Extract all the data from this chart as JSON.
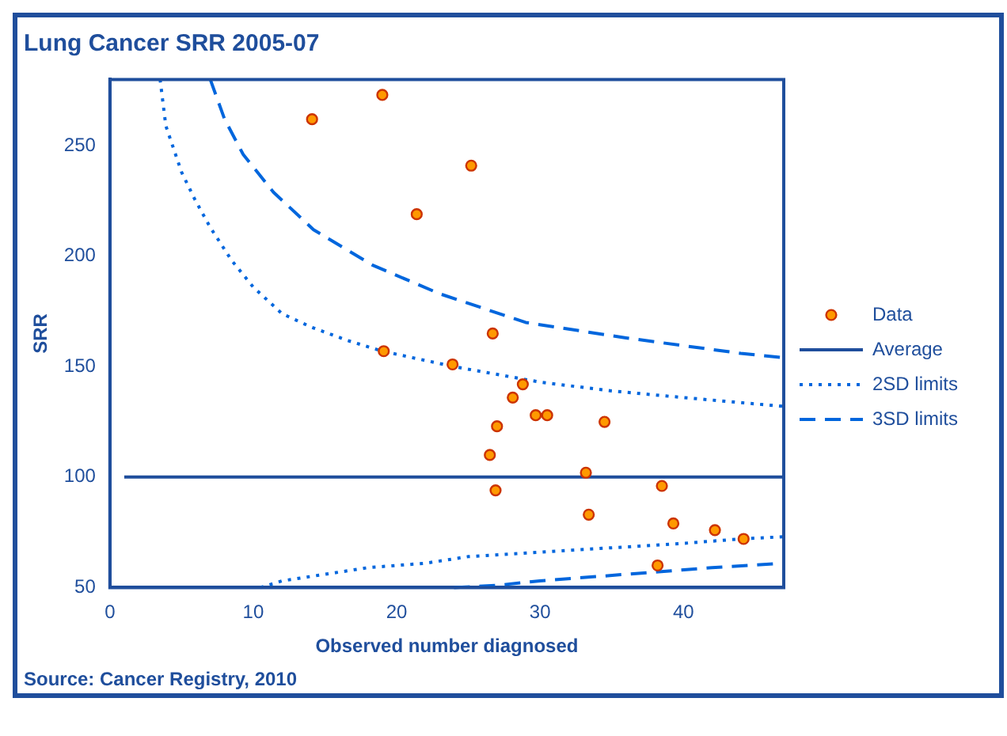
{
  "chart_data": {
    "type": "scatter",
    "title": "Lung Cancer SRR 2005-07",
    "xlabel": "Observed number diagnosed",
    "ylabel": "SRR",
    "annotations": [
      "Source: Cancer Registry, 2010"
    ],
    "xlim": [
      0,
      47
    ],
    "xticks": [
      0,
      10,
      20,
      30,
      40
    ],
    "ylim": [
      50,
      280
    ],
    "yticks": [
      50,
      100,
      150,
      200,
      250
    ],
    "grid": false,
    "legend": "right",
    "marker": "circle",
    "series": [
      {
        "name": "Data",
        "color": "#ff9900",
        "x": [
          14.1,
          19.0,
          21.4,
          25.2,
          19.1,
          23.9,
          26.7,
          28.8,
          28.1,
          27.0,
          29.7,
          30.5,
          34.5,
          26.5,
          26.9,
          33.2,
          33.4,
          38.5,
          39.3,
          42.2,
          44.2,
          38.2
        ],
        "values": [
          262,
          273,
          219,
          241,
          157,
          151,
          165,
          142,
          136,
          123,
          128,
          128,
          125,
          110,
          94,
          102,
          83,
          96,
          79,
          76,
          72,
          60
        ]
      },
      {
        "name": "Average",
        "type": "line",
        "color": "#1f4e9c",
        "line_style": "solid",
        "marker": "none",
        "x": [
          1,
          47
        ],
        "values": [
          100,
          100
        ]
      },
      {
        "name": "2SD limits",
        "type": "line",
        "color": "#0066dd",
        "line_style": "dotted",
        "marker": "none",
        "x": [
          3.5,
          3.9,
          5,
          5.9,
          7,
          8.5,
          10,
          12,
          14,
          16.5,
          19,
          24,
          30,
          35,
          40,
          47
        ],
        "values": [
          280,
          259,
          238,
          226,
          213,
          198,
          186,
          174,
          168,
          162,
          157,
          150,
          143,
          139,
          136,
          132
        ]
      },
      {
        "name": null,
        "type": "line",
        "color": "#0066dd",
        "line_style": "dotted",
        "marker": "none",
        "x": [
          10.5,
          12,
          15,
          18,
          20,
          22,
          25,
          30,
          35,
          40,
          44,
          47
        ],
        "values": [
          50,
          53,
          56,
          59,
          60,
          61,
          64,
          66,
          68,
          70,
          72,
          73
        ]
      },
      {
        "name": "3SD limits",
        "type": "line",
        "color": "#0066dd",
        "line_style": "dashed",
        "marker": "none",
        "x": [
          7,
          8,
          9.3,
          11.4,
          14.2,
          18.3,
          23,
          29,
          36,
          44,
          47
        ],
        "values": [
          280,
          262,
          246,
          229,
          212,
          196,
          183,
          170,
          163,
          156,
          154
        ]
      },
      {
        "name": null,
        "type": "line",
        "color": "#0066dd",
        "line_style": "dashed",
        "marker": "none",
        "x": [
          24,
          27,
          30,
          34,
          38,
          42,
          47
        ],
        "values": [
          50,
          51,
          53,
          55,
          57,
          59,
          61
        ]
      }
    ]
  }
}
